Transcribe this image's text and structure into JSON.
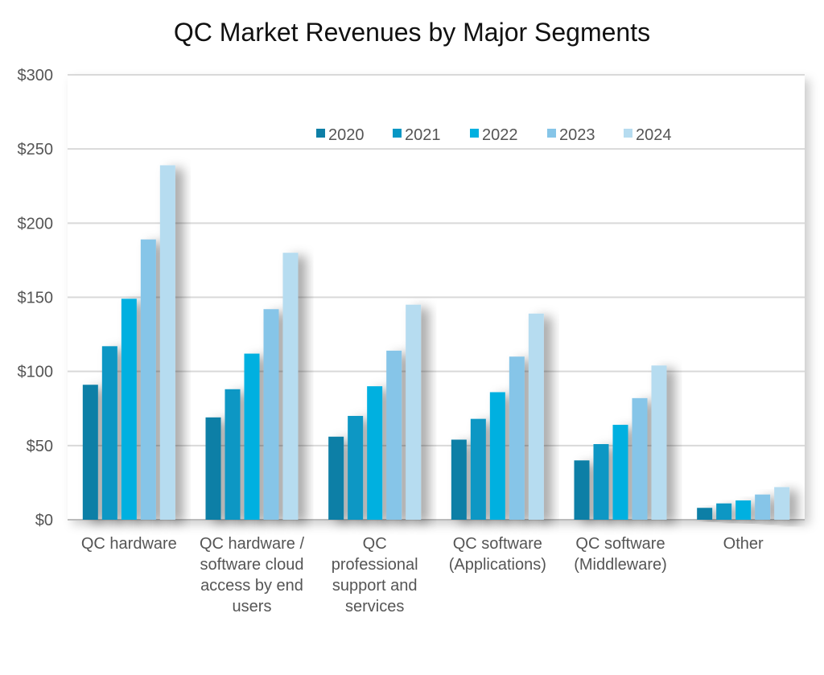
{
  "chart_data": {
    "type": "bar",
    "title": "QC Market Revenues by Major Segments",
    "xlabel": "",
    "ylabel": "",
    "ylim": [
      0,
      300
    ],
    "yticks": [
      "$0",
      "$50",
      "$100",
      "$150",
      "$200",
      "$250",
      "$300"
    ],
    "grid": true,
    "legend": "top-center",
    "categories": [
      [
        "QC hardware"
      ],
      [
        "QC hardware /",
        "software cloud",
        "access by end",
        "users"
      ],
      [
        "QC",
        "professional",
        "support and",
        "services"
      ],
      [
        "QC software",
        "(Applications)"
      ],
      [
        "QC software",
        "(Middleware)"
      ],
      [
        "Other"
      ]
    ],
    "series": [
      {
        "name": "2020",
        "color": "#0e7fa6",
        "values": [
          91,
          69,
          56,
          54,
          40,
          8
        ]
      },
      {
        "name": "2021",
        "color": "#0797c4",
        "values": [
          117,
          88,
          70,
          68,
          51,
          11
        ]
      },
      {
        "name": "2022",
        "color": "#00b0e0",
        "values": [
          149,
          112,
          90,
          86,
          64,
          13
        ]
      },
      {
        "name": "2023",
        "color": "#86c5e8",
        "values": [
          189,
          142,
          114,
          110,
          82,
          17
        ]
      },
      {
        "name": "2024",
        "color": "#b6dcf0",
        "values": [
          239,
          180,
          145,
          139,
          104,
          22
        ]
      }
    ]
  }
}
